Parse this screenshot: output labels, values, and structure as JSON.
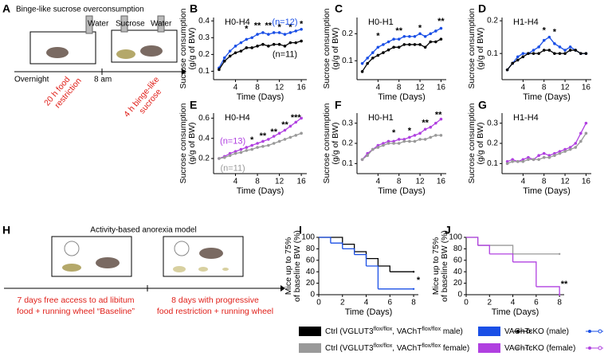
{
  "panel_labels": [
    "A",
    "B",
    "C",
    "D",
    "E",
    "F",
    "G",
    "H",
    "I",
    "J"
  ],
  "schematic_a": {
    "title": "Binge-like sucrose overconsumption",
    "water_left": "Water",
    "sucrose": "Sucrose",
    "water_right": "Water",
    "overnight": "Overnight",
    "eight_am": "8 am",
    "restriction": [
      "20 h food",
      "restriction"
    ],
    "binge": [
      "4 h binge-like",
      "sucrose"
    ]
  },
  "schematic_h": {
    "title": "Activity-based anorexia model",
    "baseline": [
      "7 days free access to ad libitum",
      "food + running wheel “Baseline”"
    ],
    "restriction": [
      "8 days with progressive",
      "food restriction + running wheel"
    ]
  },
  "chart_data": [
    {
      "type": "line",
      "title": "H0-H4",
      "x_label": "Time (Days)",
      "y_label": [
        "Sucrose consumption",
        "(g/g of BW)"
      ],
      "x": [
        1,
        2,
        3,
        4,
        5,
        6,
        7,
        8,
        9,
        10,
        11,
        12,
        13,
        14,
        15,
        16
      ],
      "xlim": [
        0,
        17
      ],
      "xticks": [
        4,
        8,
        12,
        16
      ],
      "ylim": [
        0.05,
        0.42
      ],
      "yticks": [
        0.1,
        0.2,
        0.3,
        0.4
      ],
      "series": [
        {
          "color": "#1a4fe6",
          "values": [
            0.12,
            0.18,
            0.22,
            0.25,
            0.27,
            0.29,
            0.3,
            0.32,
            0.33,
            0.32,
            0.33,
            0.33,
            0.32,
            0.33,
            0.34,
            0.35
          ]
        },
        {
          "color": "#000000",
          "values": [
            0.11,
            0.16,
            0.19,
            0.21,
            0.22,
            0.24,
            0.24,
            0.25,
            0.26,
            0.25,
            0.26,
            0.26,
            0.25,
            0.27,
            0.27,
            0.28
          ]
        }
      ],
      "annotations": [
        {
          "x": 13,
          "y": 0.39,
          "label": "(n=12)",
          "color": "#1a4fe6"
        },
        {
          "x": 13,
          "y": 0.2,
          "label": "(n=11)",
          "color": "#000000"
        }
      ],
      "stars": [
        {
          "x": 6,
          "y": 0.35,
          "label": "*"
        },
        {
          "x": 8,
          "y": 0.37,
          "label": "**"
        },
        {
          "x": 10,
          "y": 0.37,
          "label": "**"
        },
        {
          "x": 12,
          "y": 0.36,
          "label": "*"
        },
        {
          "x": 14,
          "y": 0.36,
          "label": "*"
        },
        {
          "x": 16,
          "y": 0.38,
          "label": "*"
        }
      ]
    },
    {
      "type": "line",
      "title": "H0-H1",
      "x_label": "Time (Days)",
      "y_label": [
        "Sucrose consumption",
        "(g/g of BW)"
      ],
      "x": [
        1,
        2,
        3,
        4,
        5,
        6,
        7,
        8,
        9,
        10,
        11,
        12,
        13,
        14,
        15,
        16
      ],
      "xlim": [
        0,
        17
      ],
      "xticks": [
        4,
        8,
        12,
        16
      ],
      "ylim": [
        0.03,
        0.26
      ],
      "yticks": [
        0.1,
        0.2
      ],
      "series": [
        {
          "color": "#1a4fe6",
          "values": [
            0.09,
            0.11,
            0.13,
            0.15,
            0.16,
            0.17,
            0.18,
            0.18,
            0.19,
            0.19,
            0.19,
            0.2,
            0.19,
            0.2,
            0.21,
            0.22
          ]
        },
        {
          "color": "#000000",
          "values": [
            0.06,
            0.09,
            0.11,
            0.12,
            0.13,
            0.14,
            0.15,
            0.15,
            0.16,
            0.16,
            0.16,
            0.16,
            0.15,
            0.17,
            0.17,
            0.18
          ]
        }
      ],
      "annotations": [],
      "stars": [
        {
          "x": 4,
          "y": 0.19,
          "label": "*"
        },
        {
          "x": 8,
          "y": 0.21,
          "label": "**"
        },
        {
          "x": 12,
          "y": 0.22,
          "label": "*"
        },
        {
          "x": 16,
          "y": 0.245,
          "label": "**"
        }
      ]
    },
    {
      "type": "line",
      "title": "H1-H4",
      "x_label": "Time (Days)",
      "y_label": [
        "Sucrose consumption",
        "(g/g of BW)"
      ],
      "x": [
        1,
        2,
        3,
        4,
        5,
        6,
        7,
        8,
        9,
        10,
        11,
        12,
        13,
        14,
        15,
        16
      ],
      "xlim": [
        0,
        17
      ],
      "xticks": [
        4,
        8,
        12,
        16
      ],
      "ylim": [
        0.02,
        0.21
      ],
      "yticks": [
        0.1,
        0.2
      ],
      "series": [
        {
          "color": "#1a4fe6",
          "values": [
            0.05,
            0.07,
            0.09,
            0.1,
            0.1,
            0.11,
            0.12,
            0.14,
            0.15,
            0.13,
            0.12,
            0.11,
            0.12,
            0.11,
            0.1,
            0.1
          ]
        },
        {
          "color": "#000000",
          "values": [
            0.05,
            0.07,
            0.08,
            0.09,
            0.1,
            0.1,
            0.1,
            0.11,
            0.11,
            0.1,
            0.1,
            0.1,
            0.11,
            0.11,
            0.1,
            0.1
          ]
        }
      ],
      "annotations": [],
      "stars": [
        {
          "x": 8,
          "y": 0.17,
          "label": "*"
        },
        {
          "x": 10,
          "y": 0.165,
          "label": "*"
        }
      ]
    },
    {
      "type": "line",
      "title": "H0-H4",
      "x_label": "Time (Days)",
      "y_label": [
        "Sucrose consumption",
        "(g/g of BW)"
      ],
      "x": [
        1,
        2,
        3,
        4,
        5,
        6,
        7,
        8,
        9,
        10,
        11,
        12,
        13,
        14,
        15,
        16
      ],
      "xlim": [
        0,
        17
      ],
      "xticks": [
        4,
        8,
        12,
        16
      ],
      "ylim": [
        0.05,
        0.65
      ],
      "yticks": [
        0.2,
        0.4,
        0.6
      ],
      "series": [
        {
          "color": "#b040e0",
          "values": [
            0.2,
            0.22,
            0.25,
            0.27,
            0.29,
            0.31,
            0.33,
            0.35,
            0.37,
            0.39,
            0.42,
            0.45,
            0.48,
            0.52,
            0.56,
            0.6
          ]
        },
        {
          "color": "#999999",
          "values": [
            0.2,
            0.21,
            0.23,
            0.25,
            0.26,
            0.28,
            0.29,
            0.31,
            0.32,
            0.33,
            0.35,
            0.37,
            0.39,
            0.41,
            0.43,
            0.45
          ]
        }
      ],
      "annotations": [
        {
          "x": 3.5,
          "y": 0.37,
          "label": "(n=13)",
          "color": "#b040e0"
        },
        {
          "x": 3.5,
          "y": 0.1,
          "label": "(n=11)",
          "color": "#999999"
        }
      ],
      "stars": [
        {
          "x": 7,
          "y": 0.38,
          "label": "*"
        },
        {
          "x": 9,
          "y": 0.42,
          "label": "**"
        },
        {
          "x": 11,
          "y": 0.46,
          "label": "**"
        },
        {
          "x": 13,
          "y": 0.53,
          "label": "**"
        },
        {
          "x": 15,
          "y": 0.6,
          "label": "***"
        }
      ]
    },
    {
      "type": "line",
      "title": "H0-H1",
      "x_label": "Time (Days)",
      "y_label": [
        "Sucrose consumption",
        "(g/g of BW)"
      ],
      "x": [
        1,
        2,
        3,
        4,
        5,
        6,
        7,
        8,
        9,
        10,
        11,
        12,
        13,
        14,
        15,
        16
      ],
      "xlim": [
        0,
        17
      ],
      "xticks": [
        4,
        8,
        12,
        16
      ],
      "ylim": [
        0.05,
        0.35
      ],
      "yticks": [
        0.1,
        0.2,
        0.3
      ],
      "series": [
        {
          "color": "#b040e0",
          "values": [
            0.12,
            0.15,
            0.17,
            0.19,
            0.2,
            0.21,
            0.21,
            0.22,
            0.22,
            0.23,
            0.24,
            0.25,
            0.27,
            0.28,
            0.3,
            0.32
          ]
        },
        {
          "color": "#999999",
          "values": [
            0.12,
            0.14,
            0.17,
            0.18,
            0.19,
            0.2,
            0.2,
            0.2,
            0.21,
            0.21,
            0.21,
            0.22,
            0.22,
            0.23,
            0.24,
            0.24
          ]
        }
      ],
      "annotations": [],
      "stars": [
        {
          "x": 7,
          "y": 0.25,
          "label": "*"
        },
        {
          "x": 10,
          "y": 0.26,
          "label": "*"
        },
        {
          "x": 13,
          "y": 0.3,
          "label": "**"
        },
        {
          "x": 15.5,
          "y": 0.34,
          "label": "**"
        }
      ]
    },
    {
      "type": "line",
      "title": "H1-H4",
      "x_label": "Time (Days)",
      "y_label": [
        "Sucrose consumption",
        "(g/g of BW)"
      ],
      "x": [
        1,
        2,
        3,
        4,
        5,
        6,
        7,
        8,
        9,
        10,
        11,
        12,
        13,
        14,
        15,
        16
      ],
      "xlim": [
        0,
        17
      ],
      "xticks": [
        4,
        8,
        12,
        16
      ],
      "ylim": [
        0.05,
        0.35
      ],
      "yticks": [
        0.1,
        0.2,
        0.3
      ],
      "series": [
        {
          "color": "#b040e0",
          "values": [
            0.11,
            0.12,
            0.11,
            0.12,
            0.13,
            0.12,
            0.14,
            0.15,
            0.14,
            0.15,
            0.16,
            0.17,
            0.18,
            0.2,
            0.25,
            0.3
          ]
        },
        {
          "color": "#999999",
          "values": [
            0.1,
            0.11,
            0.11,
            0.11,
            0.12,
            0.12,
            0.12,
            0.13,
            0.13,
            0.14,
            0.15,
            0.16,
            0.17,
            0.18,
            0.21,
            0.25
          ]
        }
      ],
      "annotations": [],
      "stars": []
    },
    {
      "type": "step",
      "x_label": "Time (Days)",
      "y_label": [
        "Mice up to 75%",
        "of baseline BW (%)"
      ],
      "xlim": [
        0,
        8.4
      ],
      "xticks": [
        0,
        2,
        4,
        6,
        8
      ],
      "ylim": [
        0,
        100
      ],
      "yticks": [
        0,
        20,
        40,
        60,
        80,
        100
      ],
      "series": [
        {
          "color": "#000000",
          "x": [
            0,
            2,
            3,
            4,
            5,
            6,
            8
          ],
          "values": [
            100,
            88,
            75,
            63,
            50,
            40,
            40
          ]
        },
        {
          "color": "#1a4fe6",
          "x": [
            0,
            1,
            2,
            3,
            4,
            5,
            8
          ],
          "values": [
            100,
            90,
            80,
            70,
            50,
            10,
            10
          ]
        }
      ],
      "stars": [
        {
          "x": 8.4,
          "y": 25,
          "label": "*"
        }
      ]
    },
    {
      "type": "step",
      "x_label": "Time (Days)",
      "y_label": [
        "Mice up to 75%",
        "of baseline BW (%)"
      ],
      "xlim": [
        0,
        8.4
      ],
      "xticks": [
        0,
        2,
        4,
        6,
        8
      ],
      "ylim": [
        0,
        100
      ],
      "yticks": [
        0,
        20,
        40,
        60,
        80,
        100
      ],
      "series": [
        {
          "color": "#999999",
          "x": [
            0,
            1,
            4,
            8
          ],
          "values": [
            100,
            86,
            71,
            71
          ]
        },
        {
          "color": "#b040e0",
          "x": [
            0,
            1,
            2,
            4,
            6,
            8
          ],
          "values": [
            100,
            86,
            71,
            57,
            14,
            0
          ]
        }
      ],
      "stars": [
        {
          "x": 8.4,
          "y": 18,
          "label": "**"
        }
      ]
    }
  ],
  "legend": [
    {
      "color": "#000000",
      "parts": [
        "Ctrl (VGLUT3",
        "flox/flox",
        ", VAChT",
        "flox/flox",
        " male)"
      ]
    },
    {
      "color": "#1a4fe6",
      "parts": [
        "VAChTcKO (male)"
      ]
    },
    {
      "color": "#999999",
      "parts": [
        "Ctrl (VGLUT3",
        "flox/flox",
        ", VAChT",
        "flox/flox",
        " female)"
      ]
    },
    {
      "color": "#b040e0",
      "parts": [
        "VAChTcKO (female)"
      ]
    }
  ]
}
